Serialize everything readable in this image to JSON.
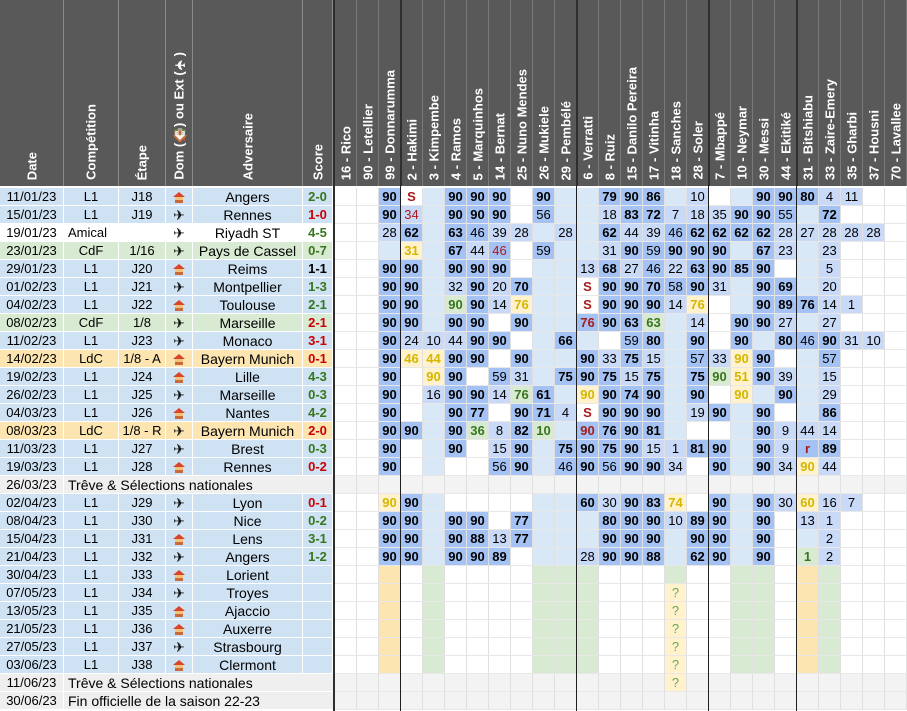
{
  "headers": {
    "date": "Date",
    "competition": "Compétition",
    "etape": "Étape",
    "venue": "Dom (🏠) ou Ext (✈)",
    "adversaire": "Adversaire",
    "score": "Score"
  },
  "players": [
    "16 - Rico",
    "90 - Letellier",
    "99 - Donnarumma",
    "2 - Hakimi",
    "3 - Kimpembe",
    "4 - Ramos",
    "5 - Marquinhos",
    "14 - Bernat",
    "25 - Nuno Mendes",
    "26 - Mukiele",
    "29 - Pembélé",
    "6 - Verratti",
    "8 - Ruiz",
    "15 - Danilo Pereira",
    "17 - Vitinha",
    "18 - Sanches",
    "28 - Soler",
    "7 - Mbappé",
    "10 - Neymar",
    "30 - Messi",
    "44 - Ekitiké",
    "31 - Bitshiabu",
    "33 - Zaire-Emery",
    "35 - Gharbi",
    "37 - Housni",
    "70 - Lavallee"
  ],
  "colors": {
    "header_bg": "#595959",
    "L1": "#cfe2f3",
    "CdF": "#d9ead3",
    "LdC": "#fce5b0",
    "Amical": "#ffffff",
    "treve": "#efefef",
    "home_icon": "house-icon",
    "away_icon": "airplane-icon",
    "score_win": "#38761d",
    "score_loss": "#cc0000",
    "score_draw": "#000000"
  },
  "matches": [
    {
      "date": "11/01/23",
      "comp": "L1",
      "etape": "J18",
      "venue": "home",
      "opp": "Angers",
      "score": "2-0",
      "result": "W",
      "cells": [
        "",
        "",
        "90",
        "S",
        "",
        "90",
        "90",
        "90",
        "",
        "90",
        "",
        "",
        "79",
        "90",
        "86",
        "",
        "10",
        "",
        "",
        "90",
        "90",
        "80",
        "4",
        "11",
        "",
        ""
      ]
    },
    {
      "date": "15/01/23",
      "comp": "L1",
      "etape": "J19",
      "venue": "away",
      "opp": "Rennes",
      "score": "1-0",
      "result": "L",
      "cells": [
        "",
        "",
        "90",
        "34",
        "",
        "90",
        "90",
        "90",
        "",
        "56",
        "",
        "",
        "18",
        "83",
        "72",
        "7",
        "18",
        "35",
        "90",
        "90",
        "55",
        "",
        "72",
        "",
        "",
        ""
      ]
    },
    {
      "date": "19/01/23",
      "comp": "Amical",
      "etape": "",
      "venue": "away",
      "opp": "Riyadh ST",
      "score": "4-5",
      "result": "W",
      "cells": [
        "",
        "",
        "28",
        "62",
        "",
        "63",
        "46",
        "39",
        "28",
        "",
        "28",
        "",
        "62",
        "44",
        "39",
        "46",
        "62",
        "62",
        "62",
        "62",
        "28",
        "27",
        "28",
        "28",
        "28",
        ""
      ]
    },
    {
      "date": "23/01/23",
      "comp": "CdF",
      "etape": "1/16",
      "venue": "away",
      "opp": "Pays de Cassel",
      "score": "0-7",
      "result": "W",
      "cells": [
        "",
        "",
        "",
        "31",
        "",
        "67",
        "44",
        "46",
        "",
        "59",
        "",
        "",
        "31",
        "90",
        "59",
        "90",
        "90",
        "90",
        "",
        "67",
        "23",
        "",
        "23",
        "",
        "",
        ""
      ]
    },
    {
      "date": "29/01/23",
      "comp": "L1",
      "etape": "J20",
      "venue": "home",
      "opp": "Reims",
      "score": "1-1",
      "result": "D",
      "cells": [
        "",
        "",
        "90",
        "90",
        "",
        "90",
        "90",
        "90",
        "",
        "",
        "",
        "13",
        "68",
        "27",
        "46",
        "22",
        "63",
        "90",
        "85",
        "90",
        "",
        "",
        "5",
        "",
        "",
        ""
      ]
    },
    {
      "date": "01/02/23",
      "comp": "L1",
      "etape": "J21",
      "venue": "away",
      "opp": "Montpellier",
      "score": "1-3",
      "result": "W",
      "cells": [
        "",
        "",
        "90",
        "90",
        "",
        "32",
        "90",
        "20",
        "70",
        "",
        "",
        "S",
        "90",
        "90",
        "70",
        "58",
        "90",
        "31",
        "",
        "90",
        "69",
        "",
        "20",
        "",
        "",
        ""
      ]
    },
    {
      "date": "04/02/23",
      "comp": "L1",
      "etape": "J22",
      "venue": "home",
      "opp": "Toulouse",
      "score": "2-1",
      "result": "W",
      "cells": [
        "",
        "",
        "90",
        "90",
        "",
        "90",
        "90",
        "14",
        "76",
        "",
        "",
        "S",
        "90",
        "90",
        "90",
        "14",
        "76",
        "",
        "",
        "90",
        "89",
        "76",
        "14",
        "1",
        "",
        ""
      ]
    },
    {
      "date": "08/02/23",
      "comp": "CdF",
      "etape": "1/8",
      "venue": "away",
      "opp": "Marseille",
      "score": "2-1",
      "result": "L",
      "cells": [
        "",
        "",
        "90",
        "90",
        "",
        "90",
        "90",
        "",
        "90",
        "",
        "",
        "76",
        "90",
        "63",
        "63",
        "",
        "14",
        "",
        "90",
        "90",
        "27",
        "",
        "27",
        "",
        "",
        ""
      ]
    },
    {
      "date": "11/02/23",
      "comp": "L1",
      "etape": "J23",
      "venue": "away",
      "opp": "Monaco",
      "score": "3-1",
      "result": "L",
      "cells": [
        "",
        "",
        "90",
        "24",
        "10",
        "44",
        "90",
        "90",
        "",
        "",
        "66",
        "",
        "",
        "59",
        "80",
        "",
        "90",
        "",
        "90",
        "",
        "80",
        "46",
        "90",
        "31",
        "10",
        ""
      ]
    },
    {
      "date": "14/02/23",
      "comp": "LdC",
      "etape": "1/8 - A",
      "venue": "home",
      "opp": "Bayern Munich",
      "score": "0-1",
      "result": "L",
      "cells": [
        "",
        "",
        "90",
        "46",
        "44",
        "90",
        "90",
        "",
        "90",
        "",
        "",
        "90",
        "33",
        "75",
        "15",
        "",
        "57",
        "33",
        "90",
        "90",
        "",
        "",
        "57",
        "",
        "",
        ""
      ]
    },
    {
      "date": "19/02/23",
      "comp": "L1",
      "etape": "J24",
      "venue": "home",
      "opp": "Lille",
      "score": "4-3",
      "result": "W",
      "cells": [
        "",
        "",
        "90",
        "",
        "90",
        "90",
        "",
        "59",
        "31",
        "",
        "75",
        "90",
        "75",
        "15",
        "75",
        "",
        "75",
        "90",
        "51",
        "90",
        "39",
        "",
        "15",
        "",
        "",
        ""
      ]
    },
    {
      "date": "26/02/23",
      "comp": "L1",
      "etape": "J25",
      "venue": "away",
      "opp": "Marseille",
      "score": "0-3",
      "result": "W",
      "cells": [
        "",
        "",
        "90",
        "",
        "16",
        "90",
        "90",
        "14",
        "76",
        "61",
        "",
        "90",
        "90",
        "74",
        "90",
        "",
        "90",
        "",
        "90",
        "",
        "90",
        "",
        "29",
        "",
        "",
        ""
      ]
    },
    {
      "date": "04/03/23",
      "comp": "L1",
      "etape": "J26",
      "venue": "home",
      "opp": "Nantes",
      "score": "4-2",
      "result": "W",
      "cells": [
        "",
        "",
        "90",
        "",
        "",
        "90",
        "77",
        "",
        "90",
        "71",
        "4",
        "S",
        "90",
        "90",
        "90",
        "",
        "19",
        "90",
        "",
        "90",
        "",
        "",
        "86",
        "",
        "",
        ""
      ]
    },
    {
      "date": "08/03/23",
      "comp": "LdC",
      "etape": "1/8 - R",
      "venue": "away",
      "opp": "Bayern Munich",
      "score": "2-0",
      "result": "L",
      "cells": [
        "",
        "",
        "90",
        "90",
        "",
        "90",
        "36",
        "8",
        "82",
        "10",
        "",
        "90",
        "76",
        "90",
        "81",
        "",
        "",
        "",
        "",
        "90",
        "9",
        "44",
        "14",
        "",
        "",
        ""
      ]
    },
    {
      "date": "11/03/23",
      "comp": "L1",
      "etape": "J27",
      "venue": "away",
      "opp": "Brest",
      "score": "0-3",
      "result": "W",
      "cells": [
        "",
        "",
        "90",
        "",
        "",
        "90",
        "",
        "15",
        "90",
        "",
        "75",
        "90",
        "75",
        "90",
        "15",
        "1",
        "81",
        "90",
        "",
        "90",
        "9",
        "r",
        "89",
        "",
        "",
        ""
      ]
    },
    {
      "date": "19/03/23",
      "comp": "L1",
      "etape": "J28",
      "venue": "home",
      "opp": "Rennes",
      "score": "0-2",
      "result": "L",
      "cells": [
        "",
        "",
        "90",
        "",
        "",
        "",
        "",
        "56",
        "90",
        "",
        "46",
        "90",
        "56",
        "90",
        "90",
        "34",
        "",
        "90",
        "",
        "90",
        "34",
        "90",
        "44",
        "",
        "",
        ""
      ]
    },
    {
      "treve": true,
      "date": "26/03/23",
      "text": "Trêve & Sélections nationales"
    },
    {
      "date": "02/04/23",
      "comp": "L1",
      "etape": "J29",
      "venue": "away",
      "opp": "Lyon",
      "score": "0-1",
      "result": "L",
      "cells": [
        "",
        "",
        "90",
        "90",
        "",
        "",
        "",
        "",
        "",
        "",
        "",
        "60",
        "30",
        "90",
        "83",
        "74",
        "",
        "90",
        "",
        "90",
        "30",
        "60",
        "16",
        "7",
        "",
        ""
      ]
    },
    {
      "date": "08/04/23",
      "comp": "L1",
      "etape": "J30",
      "venue": "away",
      "opp": "Nice",
      "score": "0-2",
      "result": "W",
      "cells": [
        "",
        "",
        "90",
        "90",
        "",
        "90",
        "90",
        "",
        "77",
        "",
        "",
        "",
        "80",
        "90",
        "90",
        "10",
        "89",
        "90",
        "",
        "90",
        "",
        "13",
        "1",
        "",
        "",
        ""
      ]
    },
    {
      "date": "15/04/23",
      "comp": "L1",
      "etape": "J31",
      "venue": "home",
      "opp": "Lens",
      "score": "3-1",
      "result": "W",
      "cells": [
        "",
        "",
        "90",
        "90",
        "",
        "90",
        "88",
        "13",
        "77",
        "",
        "",
        "",
        "90",
        "90",
        "90",
        "",
        "90",
        "90",
        "",
        "90",
        "",
        "",
        "2",
        "",
        "",
        ""
      ]
    },
    {
      "date": "21/04/23",
      "comp": "L1",
      "etape": "J32",
      "venue": "away",
      "opp": "Angers",
      "score": "1-2",
      "result": "W",
      "cells": [
        "",
        "",
        "90",
        "90",
        "",
        "90",
        "90",
        "89",
        "",
        "",
        "",
        "28",
        "90",
        "90",
        "88",
        "",
        "62",
        "90",
        "",
        "90",
        "",
        "1",
        "2",
        "",
        "",
        ""
      ]
    },
    {
      "date": "30/04/23",
      "comp": "L1",
      "etape": "J33",
      "venue": "home",
      "opp": "Lorient",
      "score": "",
      "result": "",
      "cells": [
        "",
        "",
        "",
        "",
        "",
        "",
        "",
        "",
        "",
        "",
        "",
        "",
        "",
        "",
        "",
        "",
        "",
        "",
        "",
        "",
        "",
        "",
        "",
        "",
        "",
        ""
      ]
    },
    {
      "date": "07/05/23",
      "comp": "L1",
      "etape": "J34",
      "venue": "away",
      "opp": "Troyes",
      "score": "",
      "result": "",
      "cells": [
        "",
        "",
        "",
        "",
        "",
        "",
        "",
        "",
        "",
        "",
        "",
        "",
        "",
        "",
        "",
        "?",
        "",
        "",
        "",
        "",
        "",
        "",
        "",
        "",
        "",
        ""
      ]
    },
    {
      "date": "13/05/23",
      "comp": "L1",
      "etape": "J35",
      "venue": "home",
      "opp": "Ajaccio",
      "score": "",
      "result": "",
      "cells": [
        "",
        "",
        "",
        "",
        "",
        "",
        "",
        "",
        "",
        "",
        "",
        "",
        "",
        "",
        "",
        "?",
        "",
        "",
        "",
        "",
        "",
        "",
        "",
        "",
        "",
        ""
      ]
    },
    {
      "date": "21/05/23",
      "comp": "L1",
      "etape": "J36",
      "venue": "home",
      "opp": "Auxerre",
      "score": "",
      "result": "",
      "cells": [
        "",
        "",
        "",
        "",
        "",
        "",
        "",
        "",
        "",
        "",
        "",
        "",
        "",
        "",
        "",
        "?",
        "",
        "",
        "",
        "",
        "",
        "",
        "",
        "",
        "",
        ""
      ]
    },
    {
      "date": "27/05/23",
      "comp": "L1",
      "etape": "J37",
      "venue": "away",
      "opp": "Strasbourg",
      "score": "",
      "result": "",
      "cells": [
        "",
        "",
        "",
        "",
        "",
        "",
        "",
        "",
        "",
        "",
        "",
        "",
        "",
        "",
        "",
        "?",
        "",
        "",
        "",
        "",
        "",
        "",
        "",
        "",
        "",
        ""
      ]
    },
    {
      "date": "03/06/23",
      "comp": "L1",
      "etape": "J38",
      "venue": "home",
      "opp": "Clermont",
      "score": "",
      "result": "",
      "cells": [
        "",
        "",
        "",
        "",
        "",
        "",
        "",
        "",
        "",
        "",
        "",
        "",
        "",
        "",
        "",
        "?",
        "",
        "",
        "",
        "",
        "",
        "",
        "",
        "",
        "",
        ""
      ]
    },
    {
      "treve": true,
      "date": "11/06/23",
      "text": "Trêve & Sélections nationales",
      "cells": [
        "",
        "",
        "",
        "",
        "",
        "",
        "",
        "",
        "",
        "",
        "",
        "",
        "",
        "",
        "",
        "?",
        "",
        "",
        "",
        "",
        "",
        "",
        "",
        "",
        "",
        ""
      ]
    },
    {
      "treve": true,
      "date": "30/06/23",
      "text": "Fin officielle de la saison 22-23"
    }
  ]
}
